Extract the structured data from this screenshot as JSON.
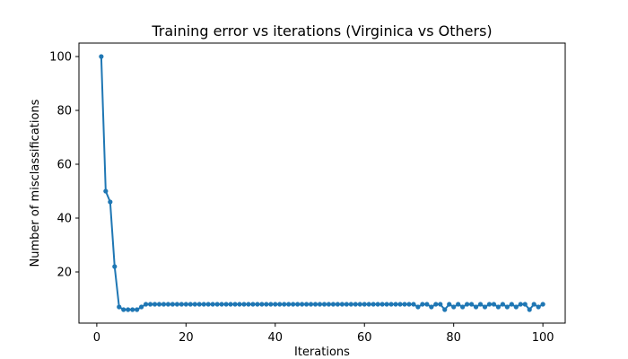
{
  "chart_data": {
    "type": "line",
    "title": "Training error vs iterations (Virginica vs Others)",
    "xlabel": "Iterations",
    "ylabel": "Number of misclassifications",
    "xlim": [
      -4,
      105
    ],
    "ylim": [
      1,
      105
    ],
    "xticks": [
      0,
      20,
      40,
      60,
      80,
      100
    ],
    "yticks": [
      20,
      40,
      60,
      80,
      100
    ],
    "grid": false,
    "legend": "none",
    "color": "#1f77b4",
    "series": [
      {
        "x": [
          1,
          2,
          3,
          4,
          5,
          6,
          7,
          8,
          9,
          10,
          11,
          12,
          13,
          14,
          15,
          16,
          17,
          18,
          19,
          20,
          21,
          22,
          23,
          24,
          25,
          26,
          27,
          28,
          29,
          30,
          31,
          32,
          33,
          34,
          35,
          36,
          37,
          38,
          39,
          40,
          41,
          42,
          43,
          44,
          45,
          46,
          47,
          48,
          49,
          50,
          51,
          52,
          53,
          54,
          55,
          56,
          57,
          58,
          59,
          60,
          61,
          62,
          63,
          64,
          65,
          66,
          67,
          68,
          69,
          70,
          71,
          72,
          73,
          74,
          75,
          76,
          77,
          78,
          79,
          80,
          81,
          82,
          83,
          84,
          85,
          86,
          87,
          88,
          89,
          90,
          91,
          92,
          93,
          94,
          95,
          96,
          97,
          98,
          99,
          100
        ],
        "y": [
          100,
          50,
          46,
          22,
          7,
          6,
          6,
          6,
          6,
          7,
          8,
          8,
          8,
          8,
          8,
          8,
          8,
          8,
          8,
          8,
          8,
          8,
          8,
          8,
          8,
          8,
          8,
          8,
          8,
          8,
          8,
          8,
          8,
          8,
          8,
          8,
          8,
          8,
          8,
          8,
          8,
          8,
          8,
          8,
          8,
          8,
          8,
          8,
          8,
          8,
          8,
          8,
          8,
          8,
          8,
          8,
          8,
          8,
          8,
          8,
          8,
          8,
          8,
          8,
          8,
          8,
          8,
          8,
          8,
          8,
          8,
          7,
          8,
          8,
          7,
          8,
          8,
          6,
          8,
          7,
          8,
          7,
          8,
          8,
          7,
          8,
          7,
          8,
          8,
          7,
          8,
          7,
          8,
          7,
          8,
          8,
          6,
          8,
          7,
          8
        ]
      }
    ]
  }
}
